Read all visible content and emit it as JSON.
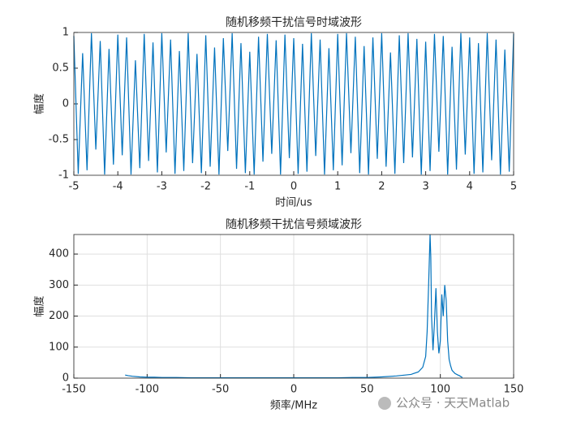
{
  "chart_data": [
    {
      "type": "line",
      "title": "随机移频干扰信号时域波形",
      "xlabel": "时间/us",
      "ylabel": "幅度",
      "color": "#0072bd",
      "grid": false,
      "xlim": [
        -5,
        5
      ],
      "xticks": [
        -5,
        -4,
        -3,
        -2,
        -1,
        0,
        1,
        2,
        3,
        4,
        5
      ],
      "ylim": [
        -1,
        1
      ],
      "yticks": [
        -1,
        -0.5,
        0,
        0.5,
        1
      ],
      "x": [
        -5,
        -4.9,
        -4.8,
        -4.7,
        -4.6,
        -4.5,
        -4.4,
        -4.3,
        -4.2,
        -4.1,
        -4,
        -3.9,
        -3.8,
        -3.7,
        -3.6,
        -3.5,
        -3.4,
        -3.3,
        -3.2,
        -3.1,
        -3,
        -2.9,
        -2.8,
        -2.7,
        -2.6,
        -2.5,
        -2.4,
        -2.3,
        -2.2,
        -2.1,
        -2,
        -1.9,
        -1.8,
        -1.7,
        -1.6,
        -1.5,
        -1.4,
        -1.3,
        -1.2,
        -1.1,
        -1,
        -0.9,
        -0.8,
        -0.7,
        -0.6,
        -0.5,
        -0.4,
        -0.3,
        -0.2,
        -0.1,
        0,
        0.1,
        0.2,
        0.3,
        0.4,
        0.5,
        0.6,
        0.7,
        0.8,
        0.9,
        1,
        1.1,
        1.2,
        1.3,
        1.4,
        1.5,
        1.6,
        1.7,
        1.8,
        1.9,
        2,
        2.1,
        2.2,
        2.3,
        2.4,
        2.5,
        2.6,
        2.7,
        2.8,
        2.9,
        3,
        3.1,
        3.2,
        3.3,
        3.4,
        3.5,
        3.6,
        3.7,
        3.8,
        3.9,
        4,
        4.1,
        4.2,
        4.3,
        4.4,
        4.5,
        4.6,
        4.7,
        4.8,
        4.9,
        5
      ],
      "values": [
        0.95,
        -0.98,
        0.71,
        -0.93,
        0.99,
        -0.64,
        0.88,
        -0.99,
        0.77,
        -0.85,
        0.97,
        -0.72,
        0.93,
        -0.99,
        0.61,
        -0.9,
        0.98,
        -0.8,
        0.86,
        -0.96,
        0.99,
        -0.68,
        0.9,
        -0.98,
        0.74,
        -0.94,
        0.99,
        -0.83,
        0.7,
        -0.97,
        0.96,
        -0.88,
        0.79,
        -0.99,
        0.92,
        -0.66,
        0.99,
        -0.91,
        0.85,
        -0.97,
        0.73,
        -0.99,
        0.94,
        -0.81,
        0.98,
        -0.7,
        0.89,
        -0.99,
        0.97,
        -0.76,
        0.92,
        -0.98,
        0.84,
        -0.95,
        0.99,
        -0.73,
        0.9,
        -0.99,
        0.78,
        -0.93,
        0.98,
        -0.86,
        0.99,
        -0.69,
        0.94,
        -0.97,
        0.81,
        -0.99,
        0.93,
        -0.77,
        0.99,
        -0.88,
        0.72,
        -0.98,
        0.96,
        -0.83,
        0.99,
        -0.75,
        0.91,
        -0.99,
        0.87,
        -0.94,
        0.98,
        -0.67,
        0.95,
        -0.99,
        0.8,
        -0.92,
        0.99,
        -0.71,
        0.93,
        -0.98,
        0.85,
        -0.96,
        0.99,
        -0.79,
        0.9,
        -0.99,
        0.76,
        -0.95,
        0.98
      ]
    },
    {
      "type": "line",
      "title": "随机移频干扰信号频域波形",
      "xlabel": "频率/MHz",
      "ylabel": "幅度",
      "color": "#0072bd",
      "grid": true,
      "xlim": [
        -150,
        150
      ],
      "xticks": [
        -150,
        -100,
        -50,
        0,
        50,
        100,
        150
      ],
      "ylim": [
        0,
        463
      ],
      "yticks": [
        0,
        100,
        200,
        300,
        400
      ],
      "x": [
        -115,
        -113,
        -110,
        -105,
        -100,
        -95,
        -90,
        -80,
        -70,
        -60,
        -50,
        -40,
        -30,
        -20,
        -10,
        0,
        10,
        20,
        30,
        40,
        50,
        60,
        70,
        80,
        85,
        88,
        90,
        91,
        92,
        93,
        93.5,
        94,
        95,
        96,
        97,
        98,
        99,
        100,
        101,
        102,
        103,
        104,
        105,
        106,
        107,
        108,
        110,
        112,
        113,
        115
      ],
      "values": [
        10,
        8,
        6,
        4,
        3,
        3,
        2,
        2,
        1,
        1,
        1,
        1,
        1,
        1,
        1,
        1,
        1,
        1,
        1,
        2,
        2,
        4,
        7,
        12,
        20,
        35,
        70,
        150,
        300,
        463,
        390,
        200,
        90,
        180,
        290,
        150,
        80,
        120,
        270,
        200,
        300,
        250,
        120,
        60,
        40,
        25,
        15,
        10,
        8,
        2
      ]
    }
  ],
  "watermark": "公众号 · 天天Matlab"
}
